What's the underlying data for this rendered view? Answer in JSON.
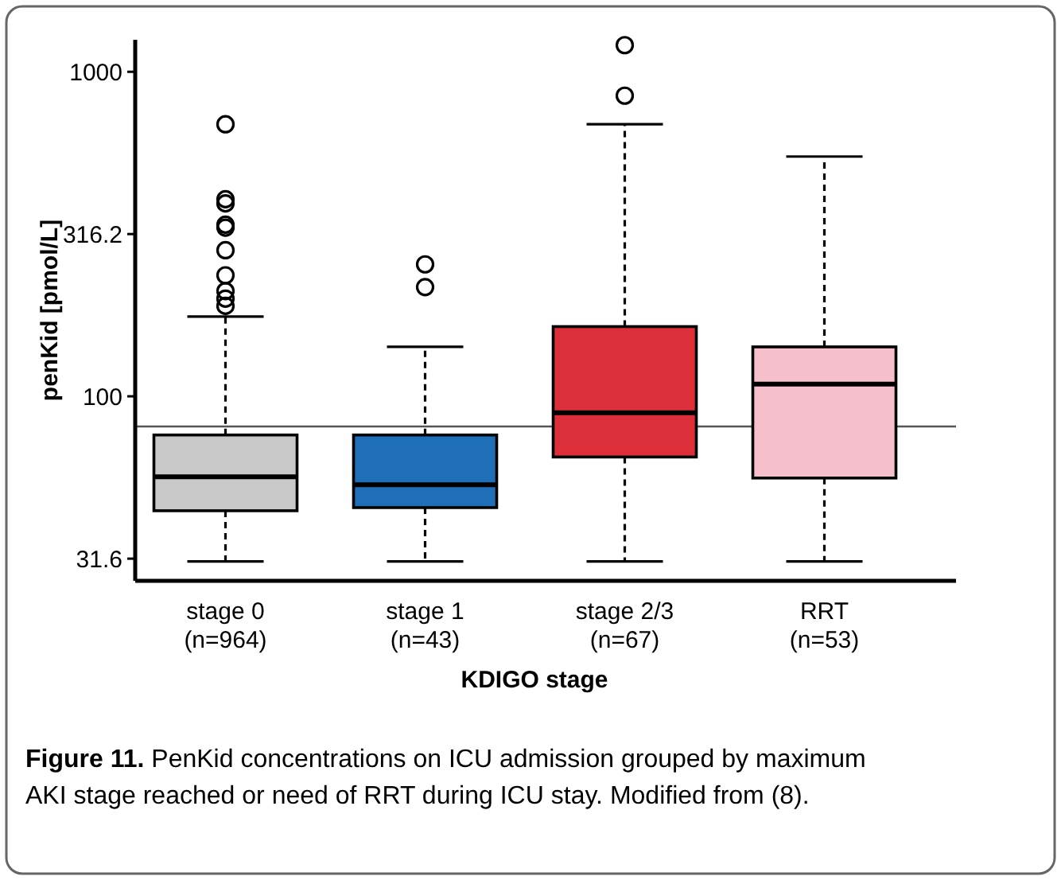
{
  "chart_data": {
    "type": "box",
    "xlabel": "KDIGO stage",
    "ylabel": "penKid [pmol/L]",
    "categories": [
      "stage 0\n(n=964)",
      "stage 1\n(n=43)",
      "stage 2/3\n(n=67)",
      "RRT\n(n=53)"
    ],
    "colors": [
      "#c8c8c8",
      "#1f6fb8",
      "#dc2f3a",
      "#f5bfcb"
    ],
    "boxes": [
      {
        "low": 31,
        "q1": 44.4,
        "median": 56.5,
        "q3": 76,
        "high": 176,
        "outliers": [
          689,
          405,
          393,
          338,
          331,
          282,
          236,
          211,
          200,
          190
        ]
      },
      {
        "low": 31,
        "q1": 45.4,
        "median": 53.4,
        "q3": 76,
        "high": 142,
        "outliers": [
          255,
          217
        ]
      },
      {
        "low": 31,
        "q1": 65,
        "median": 89,
        "q3": 164,
        "high": 689,
        "outliers": [
          1208,
          844
        ]
      },
      {
        "low": 31,
        "q1": 56,
        "median": 109,
        "q3": 142,
        "high": 548
      }
    ],
    "log": true,
    "ylim": [
      27,
      1255
    ],
    "yticks": [
      31.6,
      100,
      316.2,
      1000
    ],
    "ref_lines": [
      {
        "axis": "y",
        "value": 80.7,
        "color": "#555555"
      }
    ],
    "grid": false,
    "annotations": [
      "Figure 11. PenKid concentrations on ICU admission grouped by maximum AKI stage reached or need of RRT during ICU stay. Modified from (8)."
    ]
  }
}
